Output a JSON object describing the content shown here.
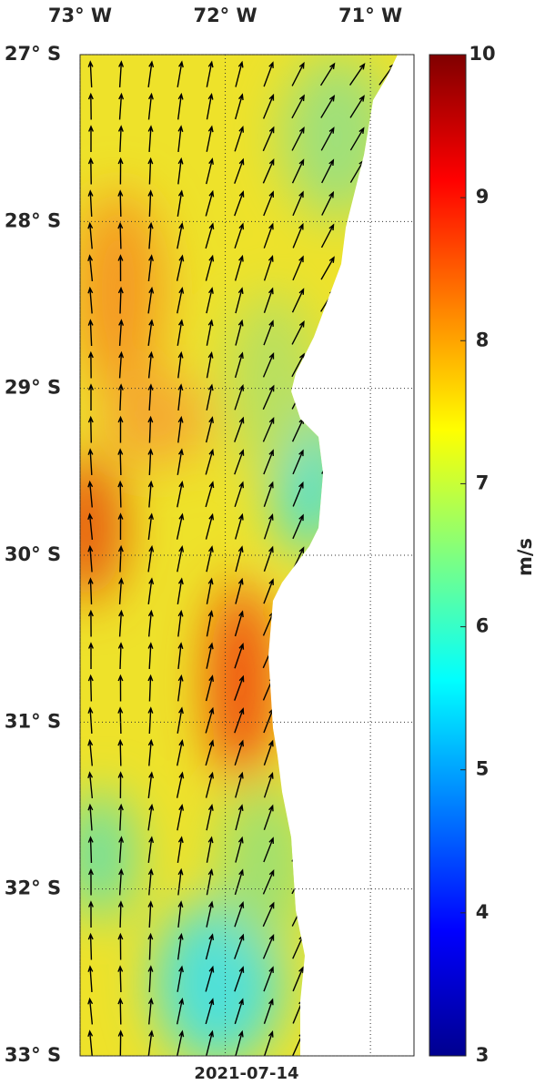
{
  "map": {
    "lonlim": [
      -73,
      -70.7
    ],
    "latlim": [
      -33,
      -27
    ],
    "lon_ticks": [
      {
        "value": -73,
        "label": "73° W"
      },
      {
        "value": -72,
        "label": "72° W"
      },
      {
        "value": -71,
        "label": "71° W"
      }
    ],
    "lat_ticks": [
      {
        "value": -27,
        "label": "27° S"
      },
      {
        "value": -28,
        "label": "28° S"
      },
      {
        "value": -29,
        "label": "29° S"
      },
      {
        "value": -30,
        "label": "30° S"
      },
      {
        "value": -31,
        "label": "31° S"
      },
      {
        "value": -32,
        "label": "32° S"
      },
      {
        "value": -33,
        "label": "33° S"
      }
    ],
    "date": "2021-07-14",
    "colorbar": {
      "label": "m/s",
      "lim": [
        3,
        10
      ],
      "ticks": [
        3,
        4,
        5,
        6,
        7,
        8,
        9,
        10
      ]
    }
  }
}
